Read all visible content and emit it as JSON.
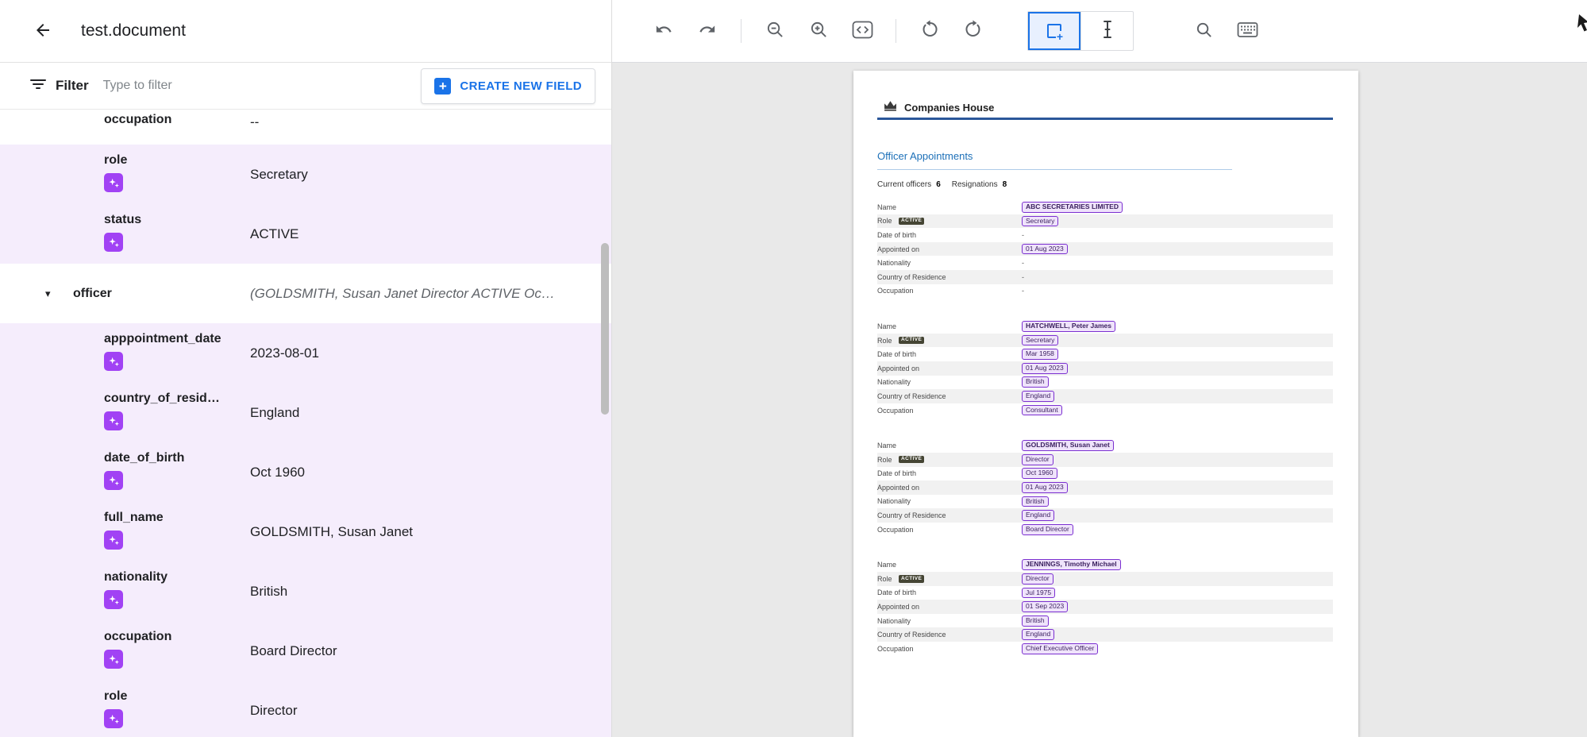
{
  "header": {
    "title": "test.document"
  },
  "filter_bar": {
    "label": "Filter",
    "placeholder": "Type to filter",
    "create_button": "CREATE NEW FIELD"
  },
  "fields": [
    {
      "label": "occupation",
      "value": "--",
      "partial": true
    },
    {
      "label": "role",
      "value": "Secretary",
      "highlight": true,
      "icon": true
    },
    {
      "label": "status",
      "value": "ACTIVE",
      "highlight": true,
      "icon": true
    },
    {
      "label": "officer",
      "value": "(GOLDSMITH, Susan Janet Director ACTIVE Oc…",
      "expandable": true,
      "italic": true
    },
    {
      "label": "apppointment_date",
      "value": "2023-08-01",
      "highlight": true,
      "icon": true
    },
    {
      "label": "country_of_resid…",
      "value": "England",
      "highlight": true,
      "icon": true
    },
    {
      "label": "date_of_birth",
      "value": "Oct 1960",
      "highlight": true,
      "icon": true
    },
    {
      "label": "full_name",
      "value": "GOLDSMITH, Susan Janet",
      "highlight": true,
      "icon": true
    },
    {
      "label": "nationality",
      "value": "British",
      "highlight": true,
      "icon": true
    },
    {
      "label": "occupation",
      "value": "Board Director",
      "highlight": true,
      "icon": true
    },
    {
      "label": "role",
      "value": "Director",
      "highlight": true,
      "icon": true
    }
  ],
  "toolbar": {
    "tools": [
      "undo",
      "redo",
      "zoom-out",
      "zoom-in",
      "code-view",
      "rotate-left",
      "rotate-right",
      "add-region",
      "text-select",
      "search",
      "keyboard"
    ],
    "selected_tool": "add-region"
  },
  "document": {
    "brand": "Companies House",
    "section_title": "Officer Appointments",
    "summary": {
      "current_label": "Current officers",
      "current_count": "6",
      "resigned_label": "Resignations",
      "resigned_count": "8"
    },
    "row_labels": [
      "Name",
      "Role",
      "Date of birth",
      "Appointed on",
      "Nationality",
      "Country of Residence",
      "Occupation"
    ],
    "role_badge": "ACTIVE",
    "officers": [
      {
        "name": "ABC SECRETARIES LIMITED",
        "role": "Secretary",
        "dob": "-",
        "appointed": "01 Aug 2023",
        "nationality": "-",
        "country": "-",
        "occupation": "-",
        "chips": {
          "name": true,
          "role": true,
          "dob": false,
          "appointed": true,
          "nationality": false,
          "country": false,
          "occupation": false
        }
      },
      {
        "name": "HATCHWELL, Peter James",
        "role": "Secretary",
        "dob": "Mar 1958",
        "appointed": "01 Aug 2023",
        "nationality": "British",
        "country": "England",
        "occupation": "Consultant",
        "chips": {
          "name": true,
          "role": true,
          "dob": true,
          "appointed": true,
          "nationality": true,
          "country": true,
          "occupation": true
        }
      },
      {
        "name": "GOLDSMITH, Susan Janet",
        "role": "Director",
        "dob": "Oct 1960",
        "appointed": "01 Aug 2023",
        "nationality": "British",
        "country": "England",
        "occupation": "Board Director",
        "chips": {
          "name": true,
          "role": true,
          "dob": true,
          "appointed": true,
          "nationality": true,
          "country": true,
          "occupation": true
        }
      },
      {
        "name": "JENNINGS, Timothy Michael",
        "role": "Director",
        "dob": "Jul 1975",
        "appointed": "01 Sep 2023",
        "nationality": "British",
        "country": "England",
        "occupation": "Chief Executive Officer",
        "chips": {
          "name": true,
          "role": true,
          "dob": true,
          "appointed": true,
          "nationality": true,
          "country": true,
          "occupation": true
        }
      }
    ]
  },
  "colors": {
    "accent": "#1a73e8",
    "extract_purple": "#a142f4",
    "highlight_bg": "#f5edfc",
    "chip_border": "#7b2fd0",
    "link_blue": "#1d70b8",
    "brand_line": "#2b579a"
  }
}
